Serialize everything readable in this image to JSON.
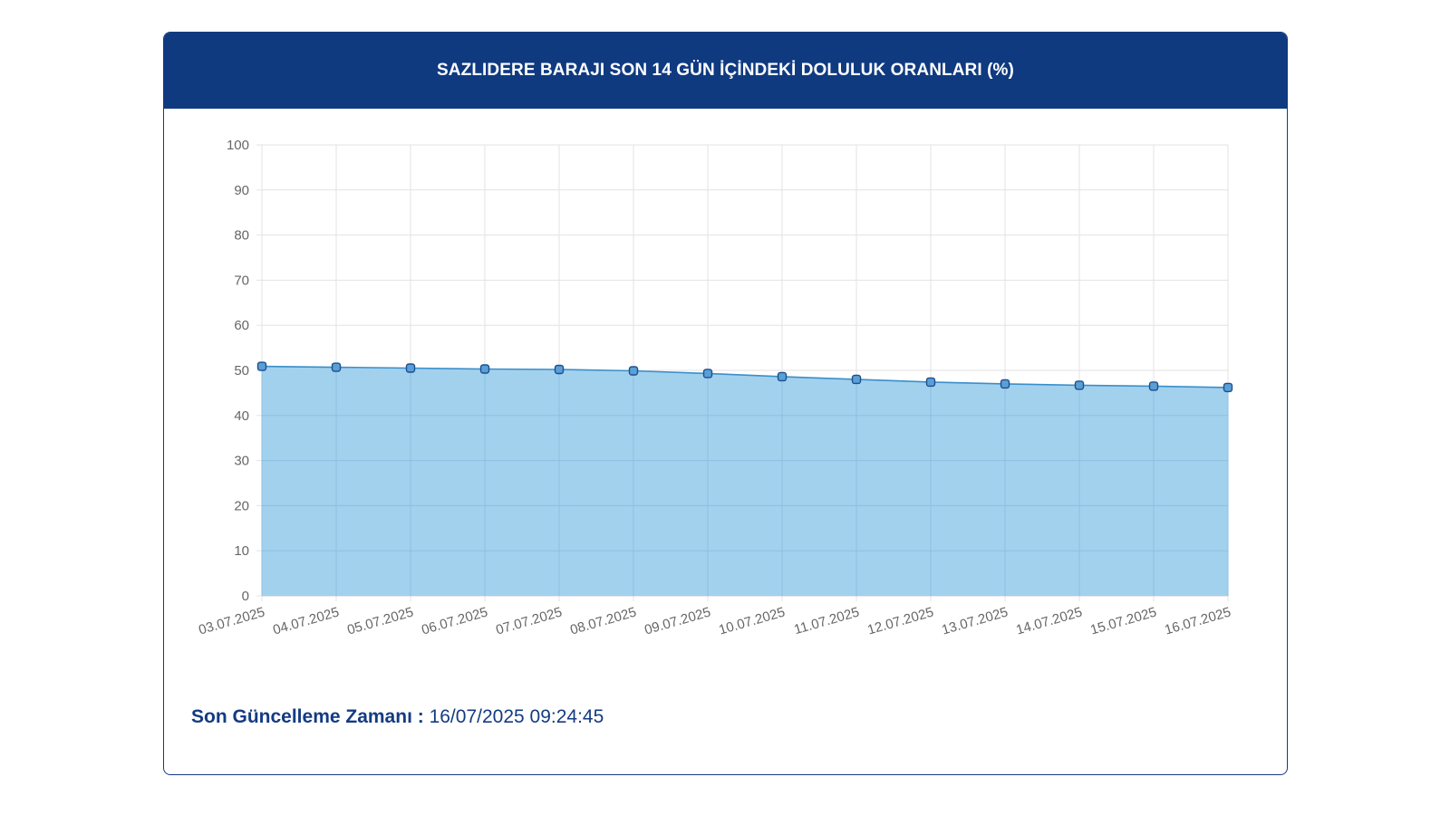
{
  "header": {
    "title": "SAZLIDERE BARAJI SON 14 GÜN İÇİNDEKİ DOLULUK ORANLARI (%)"
  },
  "footer": {
    "update_label": "Son Güncelleme Zamanı :",
    "update_value": "16/07/2025 09:24:45"
  },
  "colors": {
    "header_bg": "#0f3a80",
    "accent": "#143b82",
    "area_fill": "#9dcfed",
    "line": "#3a8fc9",
    "point_fill": "#5a9fd6",
    "point_stroke": "#1d4f8f"
  },
  "chart_data": {
    "type": "area",
    "title": "SAZLIDERE BARAJI SON 14 GÜN İÇİNDEKİ DOLULUK ORANLARI (%)",
    "categories": [
      "03.07.2025",
      "04.07.2025",
      "05.07.2025",
      "06.07.2025",
      "07.07.2025",
      "08.07.2025",
      "09.07.2025",
      "10.07.2025",
      "11.07.2025",
      "12.07.2025",
      "13.07.2025",
      "14.07.2025",
      "15.07.2025",
      "16.07.2025"
    ],
    "values": [
      50.9,
      50.7,
      50.5,
      50.3,
      50.2,
      49.9,
      49.3,
      48.6,
      48.0,
      47.4,
      47.0,
      46.7,
      46.5,
      46.2
    ],
    "ylim": [
      0,
      100
    ],
    "yticks": [
      0,
      10,
      20,
      30,
      40,
      50,
      60,
      70,
      80,
      90,
      100
    ],
    "grid": true,
    "legend": "none",
    "xlabel": "",
    "ylabel": ""
  }
}
